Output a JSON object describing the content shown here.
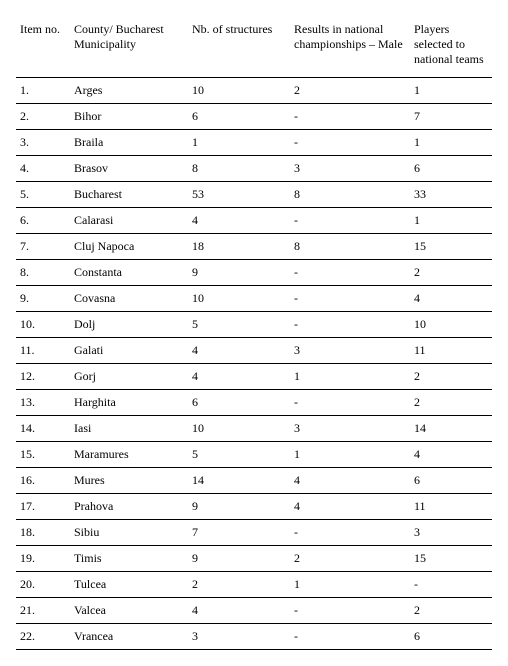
{
  "table": {
    "columns": [
      "Item no.",
      "County/ Bucharest Municipality",
      "Nb. of structures",
      "Results in national championships – Male",
      "Players selected to national teams"
    ],
    "rows": [
      [
        "1.",
        "Arges",
        "10",
        "2",
        "1"
      ],
      [
        "2.",
        "Bihor",
        "6",
        "-",
        "7"
      ],
      [
        "3.",
        "Braila",
        "1",
        "-",
        "1"
      ],
      [
        "4.",
        "Brasov",
        "8",
        "3",
        "6"
      ],
      [
        "5.",
        "Bucharest",
        "53",
        "8",
        "33"
      ],
      [
        "6.",
        "Calarasi",
        "4",
        "-",
        "1"
      ],
      [
        "7.",
        "Cluj Napoca",
        "18",
        "8",
        "15"
      ],
      [
        "8.",
        "Constanta",
        "9",
        "-",
        "2"
      ],
      [
        "9.",
        "Covasna",
        "10",
        "-",
        "4"
      ],
      [
        "10.",
        "Dolj",
        "5",
        "-",
        "10"
      ],
      [
        "11.",
        "Galati",
        "4",
        "3",
        "11"
      ],
      [
        "12.",
        "Gorj",
        "4",
        "1",
        "2"
      ],
      [
        "13.",
        "Harghita",
        "6",
        "-",
        "2"
      ],
      [
        "14.",
        "Iasi",
        "10",
        "3",
        "14"
      ],
      [
        "15.",
        "Maramures",
        "5",
        "1",
        "4"
      ],
      [
        "16.",
        "Mures",
        "14",
        "4",
        "6"
      ],
      [
        "17.",
        "Prahova",
        "9",
        "4",
        "11"
      ],
      [
        "18.",
        "Sibiu",
        "7",
        "-",
        "3"
      ],
      [
        "19.",
        "Timis",
        "9",
        "2",
        "15"
      ],
      [
        "20.",
        "Tulcea",
        "2",
        "1",
        "-"
      ],
      [
        "21.",
        "Valcea",
        "4",
        "-",
        "2"
      ],
      [
        "22.",
        "Vrancea",
        "3",
        "-",
        "6"
      ]
    ]
  }
}
